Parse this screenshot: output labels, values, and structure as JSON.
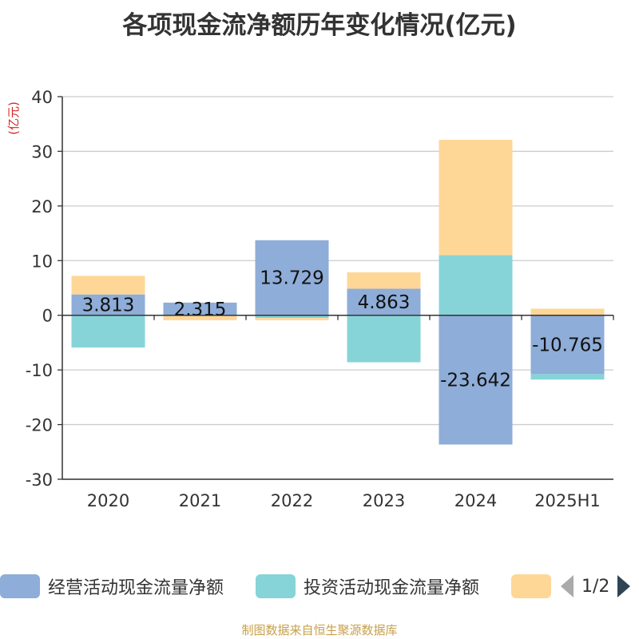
{
  "title": "各项现金流净额历年变化情况(亿元)",
  "y_unit_label": "(亿元)",
  "source_note": "制图数据来自恒生聚源数据库",
  "pager": {
    "text": "1/2"
  },
  "chart_data": {
    "type": "bar",
    "stacked": true,
    "categories": [
      "2020",
      "2021",
      "2022",
      "2023",
      "2024",
      "2025H1"
    ],
    "ylim": [
      -30,
      40
    ],
    "yticks": [
      -30,
      -20,
      -10,
      0,
      10,
      20,
      30,
      40
    ],
    "grid": true,
    "legend_position": "bottom",
    "series": [
      {
        "name": "经营活动现金流量净额",
        "color": "#8eadd8",
        "values": [
          3.813,
          2.315,
          13.729,
          4.863,
          -23.642,
          -10.765
        ],
        "labels": [
          "3.813",
          "2.315",
          "13.729",
          "4.863",
          "-23.642",
          "-10.765"
        ]
      },
      {
        "name": "投资活动现金流量净额",
        "color": "#86d4d8",
        "values": [
          -5.9,
          0,
          -0.5,
          -8.6,
          11.0,
          -1.0
        ]
      },
      {
        "name": "",
        "color": "#fed797",
        "values": [
          3.4,
          -0.9,
          -0.4,
          3.0,
          21.1,
          1.2
        ]
      }
    ]
  }
}
